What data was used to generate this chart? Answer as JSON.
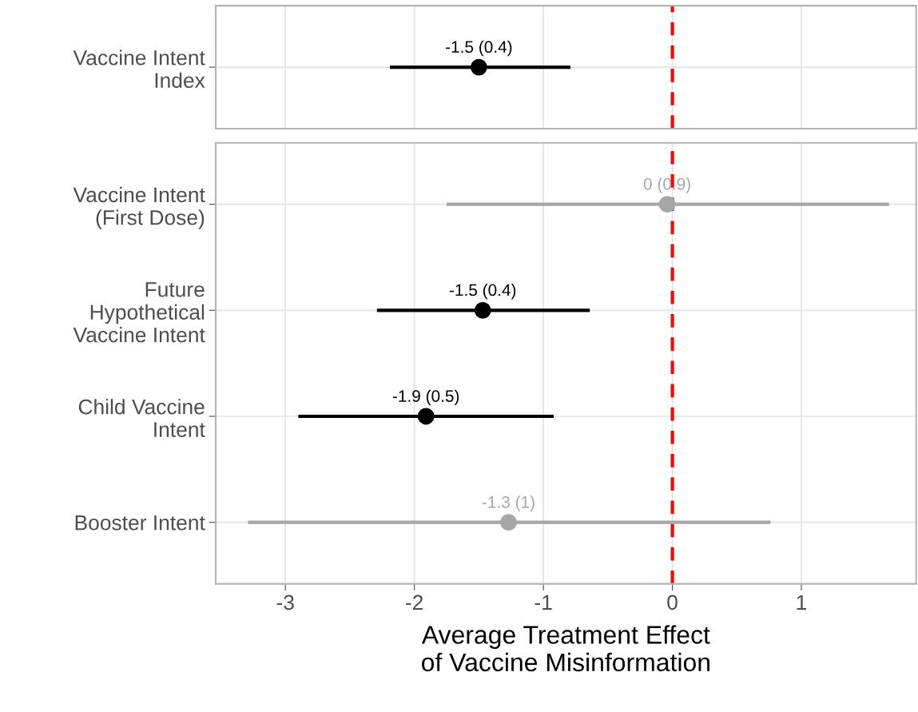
{
  "chart_data": [
    {
      "type": "scatter",
      "orientation": "horizontal",
      "categories": [
        "Vaccine Intent\nIndex"
      ],
      "values": [
        -1.5
      ],
      "errors": [
        [
          -2.19,
          -0.79
        ]
      ],
      "colors": [
        "#000000"
      ],
      "value_labels": [
        "-1.5 (0.4)"
      ],
      "marker": "circle",
      "xlim": [
        -3.54,
        1.89
      ],
      "xticks": [
        -3,
        -2,
        -1,
        0,
        1
      ],
      "tick_labels": "y",
      "grid": true,
      "ref_lines": [
        {
          "axis": "x",
          "value": 0,
          "color": "#ff0000",
          "line_style": "dashed"
        }
      ]
    },
    {
      "type": "scatter",
      "orientation": "horizontal",
      "categories": [
        "Vaccine Intent\n(First Dose)",
        "Future\nHypothetical\nVaccine Intent",
        "Child Vaccine\nIntent",
        "Booster Intent"
      ],
      "values": [
        -0.04,
        -1.47,
        -1.91,
        -1.27
      ],
      "errors": [
        [
          -1.75,
          1.68
        ],
        [
          -2.29,
          -0.64
        ],
        [
          -2.9,
          -0.92
        ],
        [
          -3.29,
          0.76
        ]
      ],
      "colors": [
        "#a6a6a6",
        "#000000",
        "#000000",
        "#a6a6a6"
      ],
      "value_labels": [
        "0 (0.9)",
        "-1.5 (0.4)",
        "-1.9 (0.5)",
        "-1.3 (1)"
      ],
      "marker": "circle",
      "xlim": [
        -3.54,
        1.89
      ],
      "xticks": [
        -3,
        -2,
        -1,
        0,
        1
      ],
      "grid": true,
      "xlabel": "Average Treatment Effect\nof Vaccine Misinformation",
      "ref_lines": [
        {
          "axis": "x",
          "value": 0,
          "color": "#ff0000",
          "line_style": "dashed"
        }
      ]
    }
  ]
}
